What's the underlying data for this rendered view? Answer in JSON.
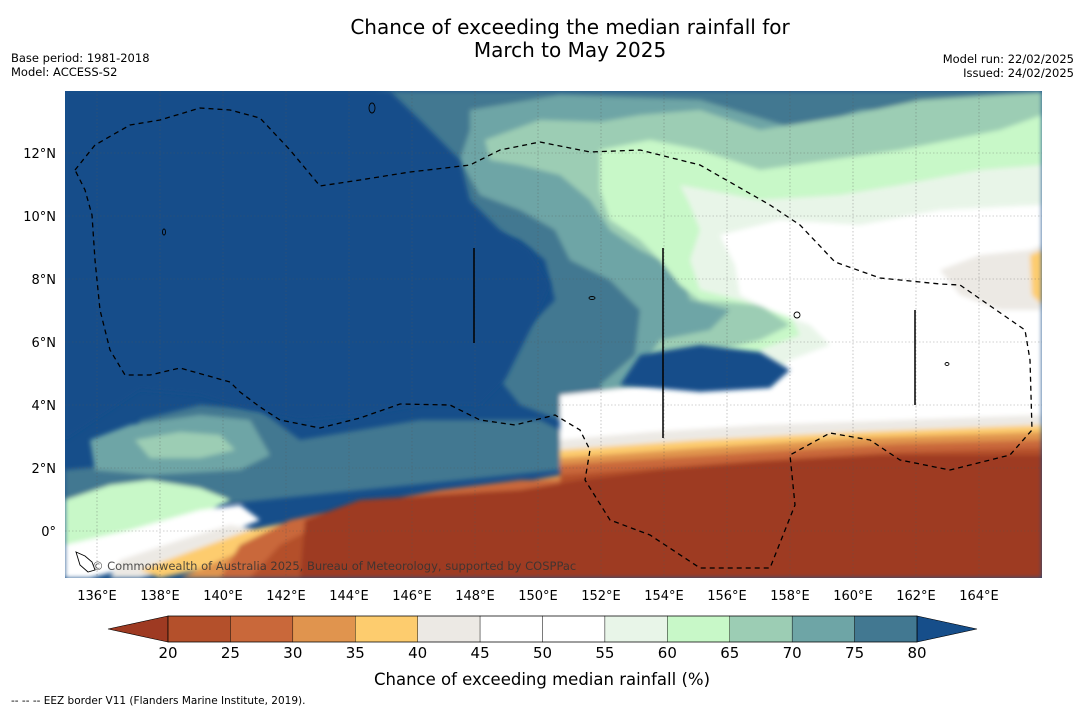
{
  "title_line1": "Chance of exceeding the median rainfall for",
  "title_line2": "March to May 2025",
  "base_period": "Base period: 1981-2018",
  "model": "Model: ACCESS-S2",
  "model_run": "Model run: 22/02/2025",
  "issued": "Issued: 24/02/2025",
  "copyright": "© Commonwealth of Australia 2025, Bureau of Meteorology, supported by COSPPac",
  "footnote": "-- -- -- EEZ border V11 (Flanders Marine Institute, 2019).",
  "map": {
    "lon_labels": [
      "136°E",
      "138°E",
      "140°E",
      "142°E",
      "144°E",
      "146°E",
      "148°E",
      "150°E",
      "152°E",
      "154°E",
      "156°E",
      "158°E",
      "160°E",
      "162°E",
      "164°E"
    ],
    "lat_labels": [
      "12°N",
      "10°N",
      "8°N",
      "6°N",
      "4°N",
      "2°N",
      "0°"
    ]
  },
  "colorbar": {
    "label": "Chance of exceeding median rainfall (%)",
    "ticks": [
      "20",
      "25",
      "30",
      "35",
      "40",
      "45",
      "50",
      "55",
      "60",
      "65",
      "70",
      "75",
      "80"
    ],
    "colors": [
      "#9e3a22",
      "#b4502b",
      "#c9683a",
      "#e0944e",
      "#fdcc6e",
      "#ece9e4",
      "#ffffff",
      "#ffffff",
      "#e8f5e8",
      "#c8f8c8",
      "#9ccdb4",
      "#6ea5a6",
      "#427891",
      "#164e8a"
    ]
  }
}
